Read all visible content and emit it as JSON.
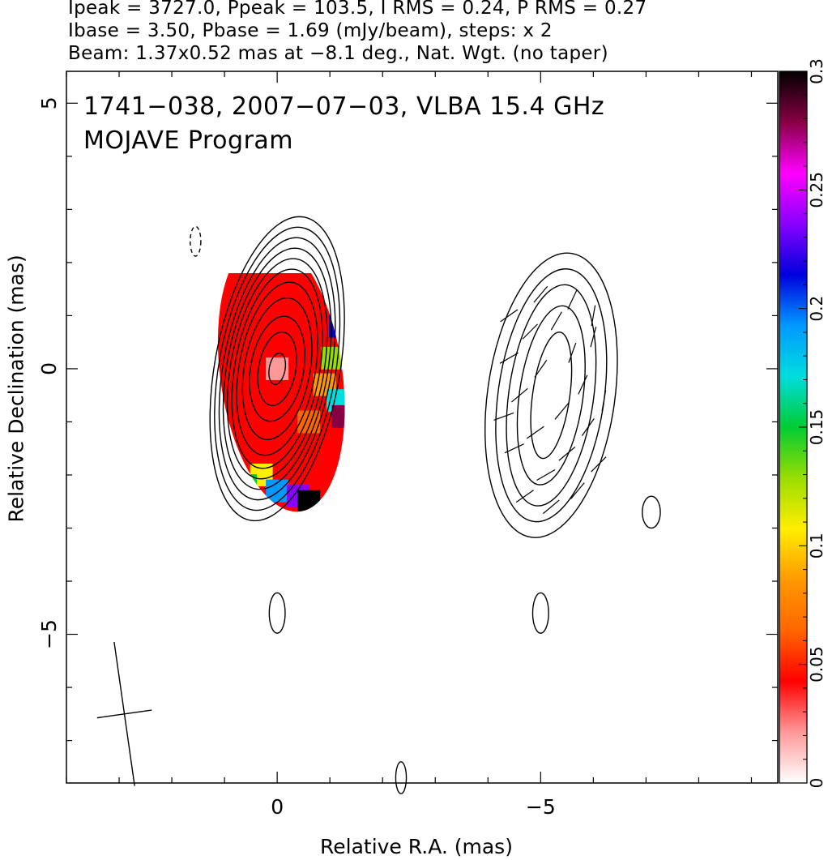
{
  "header": {
    "line1": "Ipeak = 3727.0, Ppeak = 103.5, I RMS = 0.24, P RMS = 0.27",
    "line2": "Ibase = 3.50, Pbase = 1.69 (mJy/beam), steps: x 2",
    "line3": "Beam: 1.37x0.52 mas at −8.1 deg., Nat. Wgt. (no taper)"
  },
  "chart_data": {
    "type": "heatmap",
    "title": "1741−038, 2007−07−03, VLBA 15.4 GHz",
    "subtitle": "MOJAVE Program",
    "xlabel": "Relative R.A. (mas)",
    "ylabel": "Relative Declination (mas)",
    "xlim": [
      4,
      -9.5
    ],
    "ylim": [
      -7.8,
      5.6
    ],
    "x_ticks": [
      {
        "value": 0,
        "label": "0"
      },
      {
        "value": -5,
        "label": "−5"
      }
    ],
    "y_ticks": [
      {
        "value": 5,
        "label": "5"
      },
      {
        "value": 0,
        "label": "0"
      },
      {
        "value": -5,
        "label": "−5"
      }
    ],
    "colorbar": {
      "min": 0,
      "max": 0.3,
      "ticks": [
        {
          "value": 0,
          "label": "0"
        },
        {
          "value": 0.05,
          "label": "0.05"
        },
        {
          "value": 0.1,
          "label": "0.1"
        },
        {
          "value": 0.15,
          "label": "0.15"
        },
        {
          "value": 0.2,
          "label": "0.2"
        },
        {
          "value": 0.25,
          "label": "0.25"
        },
        {
          "value": 0.3,
          "label": "0.3"
        }
      ],
      "stops": [
        "#ffffff",
        "#ff9999",
        "#ff0000",
        "#ff6600",
        "#ff9900",
        "#ffee00",
        "#99dd00",
        "#00cc33",
        "#00dddd",
        "#0099ff",
        "#0000dd",
        "#8800ff",
        "#ff00ff",
        "#880044",
        "#000000"
      ]
    },
    "beam": {
      "major_mas": 1.37,
      "minor_mas": 0.52,
      "pa_deg": -8.1,
      "center": [
        2.9,
        -6.5
      ]
    },
    "core": {
      "center": [
        0,
        0
      ],
      "contours": [
        {
          "rx": 0.15,
          "ry": 0.3
        },
        {
          "rx": 0.35,
          "ry": 0.7
        },
        {
          "rx": 0.5,
          "ry": 1.0
        },
        {
          "rx": 0.62,
          "ry": 1.35
        },
        {
          "rx": 0.72,
          "ry": 1.65
        },
        {
          "rx": 0.8,
          "ry": 1.9
        },
        {
          "rx": 0.88,
          "ry": 2.1
        },
        {
          "rx": 0.95,
          "ry": 2.3
        },
        {
          "rx": 1.02,
          "ry": 2.5
        },
        {
          "rx": 1.1,
          "ry": 2.7
        },
        {
          "rx": 1.18,
          "ry": 2.9
        }
      ],
      "fpol_cells": [
        {
          "x": 0.2,
          "y": 0.5,
          "v": 0.04
        },
        {
          "x": 0.0,
          "y": 0.0,
          "v": 0.03
        },
        {
          "x": -0.2,
          "y": -0.5,
          "v": 0.045
        },
        {
          "x": 0.5,
          "y": 1.0,
          "v": 0.05
        },
        {
          "x": -0.6,
          "y": -1.0,
          "v": 0.06
        },
        {
          "x": -0.9,
          "y": -0.3,
          "v": 0.09
        },
        {
          "x": -1.05,
          "y": 0.2,
          "v": 0.12
        },
        {
          "x": -1.15,
          "y": -0.6,
          "v": 0.17
        },
        {
          "x": -1.2,
          "y": 0.8,
          "v": 0.22
        },
        {
          "x": -1.25,
          "y": -0.9,
          "v": 0.28
        },
        {
          "x": 0.3,
          "y": -2.0,
          "v": 0.1
        },
        {
          "x": 0.6,
          "y": -2.2,
          "v": 0.15
        },
        {
          "x": 0.0,
          "y": -2.3,
          "v": 0.19
        },
        {
          "x": -0.4,
          "y": -2.4,
          "v": 0.24
        },
        {
          "x": -0.6,
          "y": -2.5,
          "v": 0.3
        }
      ]
    },
    "jet": {
      "center": [
        -5.2,
        -0.5
      ],
      "contours": [
        {
          "rx": 0.35,
          "ry": 1.2
        },
        {
          "rx": 0.6,
          "ry": 1.7
        },
        {
          "rx": 0.8,
          "ry": 2.1
        },
        {
          "rx": 1.0,
          "ry": 2.4
        },
        {
          "rx": 1.2,
          "ry": 2.7
        }
      ]
    },
    "isolated_contours": [
      {
        "x": 1.55,
        "y": 2.4,
        "rx": 0.1,
        "ry": 0.28,
        "dashed": true
      },
      {
        "x": 0.0,
        "y": -4.6,
        "rx": 0.15,
        "ry": 0.38,
        "dashed": false
      },
      {
        "x": -5.0,
        "y": -4.6,
        "rx": 0.15,
        "ry": 0.38,
        "dashed": false
      },
      {
        "x": -7.1,
        "y": -2.7,
        "rx": 0.17,
        "ry": 0.3,
        "dashed": false
      },
      {
        "x": -2.35,
        "y": -7.7,
        "rx": 0.1,
        "ry": 0.3,
        "dashed": false
      }
    ],
    "evpa_vectors": [
      {
        "x": -4.4,
        "y": 0.2,
        "angle": 30
      },
      {
        "x": -4.6,
        "y": -0.5,
        "angle": 40
      },
      {
        "x": -4.8,
        "y": 0.7,
        "angle": 45
      },
      {
        "x": -4.9,
        "y": -1.2,
        "angle": 35
      },
      {
        "x": -5.0,
        "y": 0.0,
        "angle": 55
      },
      {
        "x": -5.1,
        "y": -2.0,
        "angle": 30
      },
      {
        "x": -5.3,
        "y": 0.9,
        "angle": 60
      },
      {
        "x": -5.4,
        "y": -0.8,
        "angle": 50
      },
      {
        "x": -5.5,
        "y": -1.6,
        "angle": 40
      },
      {
        "x": -5.6,
        "y": 0.3,
        "angle": 70
      },
      {
        "x": -5.8,
        "y": -0.3,
        "angle": 65
      },
      {
        "x": -5.9,
        "y": -1.1,
        "angle": 55
      },
      {
        "x": -6.0,
        "y": 0.6,
        "angle": 75
      },
      {
        "x": -6.1,
        "y": -1.8,
        "angle": 45
      },
      {
        "x": -4.5,
        "y": -1.5,
        "angle": 25
      },
      {
        "x": -4.7,
        "y": -2.4,
        "angle": 35
      },
      {
        "x": -5.2,
        "y": -2.6,
        "angle": 40
      },
      {
        "x": -5.7,
        "y": -2.3,
        "angle": 50
      },
      {
        "x": -6.2,
        "y": -0.6,
        "angle": 80
      },
      {
        "x": -4.4,
        "y": 1.0,
        "angle": 35
      },
      {
        "x": -5.0,
        "y": 1.4,
        "angle": 50
      },
      {
        "x": -5.6,
        "y": 1.3,
        "angle": 65
      },
      {
        "x": -6.0,
        "y": 1.0,
        "angle": 80
      },
      {
        "x": -4.3,
        "y": -0.9,
        "angle": 20
      }
    ]
  }
}
